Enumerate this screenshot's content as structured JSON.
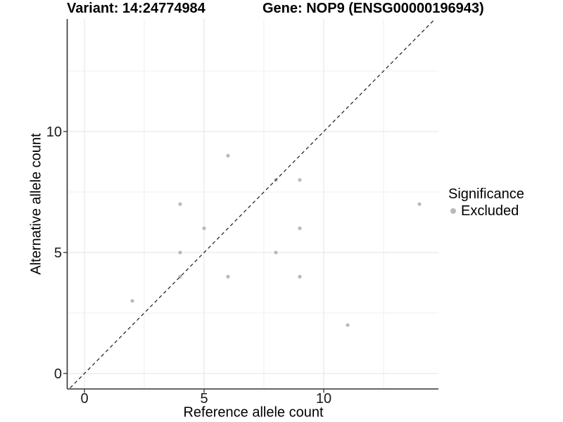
{
  "header": {
    "title_left": "Variant: 14:24774984",
    "title_right": "Gene: NOP9 (ENSG00000196943)"
  },
  "legend": {
    "title": "Significance",
    "items": [
      {
        "label": "Excluded",
        "color": "#bababa"
      }
    ],
    "position": "right"
  },
  "chart_data": {
    "type": "scatter",
    "title": "Variant: 14:24774984 — Gene: NOP9 (ENSG00000196943)",
    "xlabel": "Reference allele count",
    "ylabel": "Alternative allele count",
    "xlim": [
      -0.75,
      14.8
    ],
    "ylim": [
      -0.65,
      14.65
    ],
    "x_ticks": [
      0,
      5,
      10
    ],
    "y_ticks": [
      0,
      5,
      10
    ],
    "x_grid_major": [
      0,
      5,
      10
    ],
    "x_grid_minor": [
      2.5,
      7.5,
      12.5
    ],
    "y_grid_major": [
      0,
      5,
      10
    ],
    "y_grid_minor": [
      2.5,
      7.5,
      12.5
    ],
    "grid": true,
    "legend_position": "right",
    "reference_line": {
      "type": "identity",
      "style": "dashed",
      "color": "#1a1a1a",
      "span": [
        -0.6,
        14.65
      ]
    },
    "series": [
      {
        "name": "Excluded",
        "color": "#bababa",
        "marker": "circle",
        "points": [
          [
            2,
            3
          ],
          [
            4,
            4
          ],
          [
            4,
            5
          ],
          [
            4,
            7
          ],
          [
            5,
            6
          ],
          [
            6,
            4
          ],
          [
            6,
            9
          ],
          [
            8,
            5
          ],
          [
            8,
            8
          ],
          [
            9,
            4
          ],
          [
            9,
            6
          ],
          [
            9,
            8
          ],
          [
            11,
            2
          ],
          [
            14,
            7
          ]
        ]
      }
    ],
    "colors": {
      "grid_major": "#e3e3e3",
      "grid_minor": "#efefef",
      "axis": "#333333",
      "tick_text": "#1a1a1a"
    }
  }
}
